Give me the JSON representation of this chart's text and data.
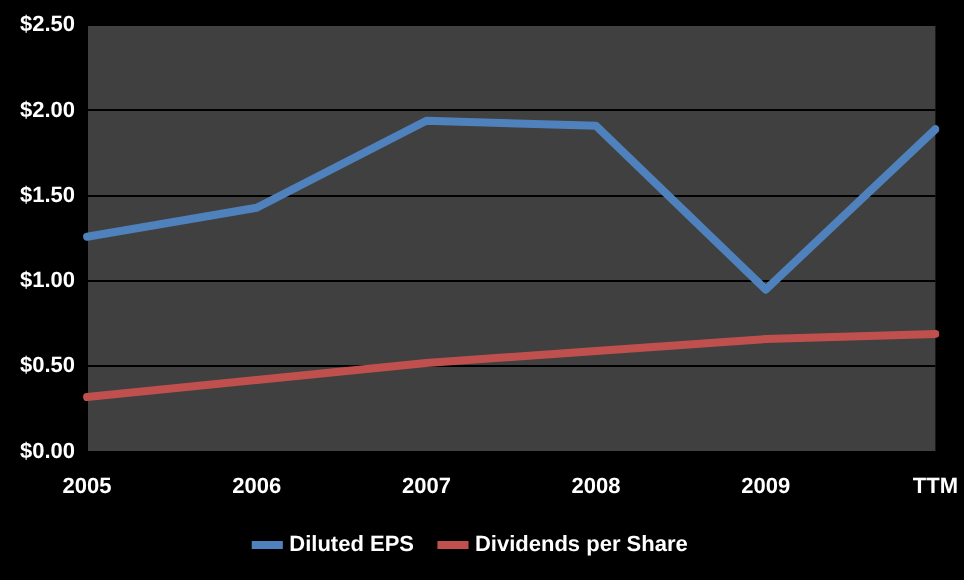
{
  "chart_data": {
    "type": "line",
    "categories": [
      "2005",
      "2006",
      "2007",
      "2008",
      "2009",
      "TTM"
    ],
    "series": [
      {
        "name": "Diluted EPS",
        "color": "#4f81bd",
        "values": [
          1.26,
          1.43,
          1.94,
          1.91,
          0.95,
          1.89
        ]
      },
      {
        "name": "Dividends per Share",
        "color": "#c0504d",
        "values": [
          0.32,
          0.42,
          0.52,
          0.59,
          0.66,
          0.69
        ]
      }
    ],
    "ylim": [
      0,
      2.5
    ],
    "yticks": [
      {
        "value": 0,
        "label": "$0.00"
      },
      {
        "value": 0.5,
        "label": "$0.50"
      },
      {
        "value": 1,
        "label": "$1.00"
      },
      {
        "value": 1.5,
        "label": "$1.50"
      },
      {
        "value": 2,
        "label": "$2.00"
      },
      {
        "value": 2.5,
        "label": "$2.50"
      }
    ],
    "grid": "y",
    "legend": "bottom",
    "marker": "none",
    "line_style": "solid"
  }
}
